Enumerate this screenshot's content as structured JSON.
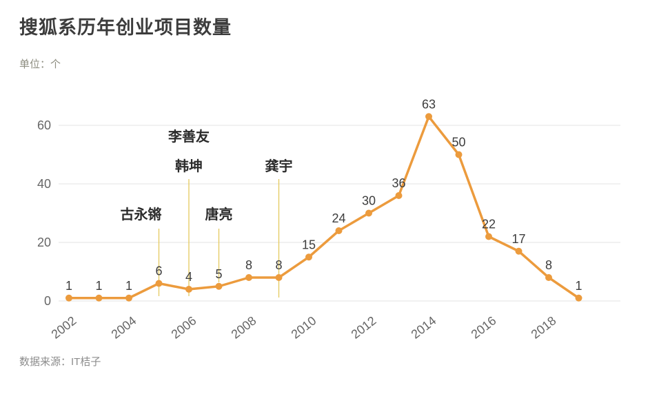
{
  "title": "搜狐系历年创业项目数量",
  "unit_label": "单位：个",
  "source_label": "数据来源：IT桔子",
  "colors": {
    "line": "#EC9B3D",
    "marker": "#EC9B3D",
    "annotation_line": "#E4C95E",
    "annotation_text": "#2B2B2B",
    "grid": "#E3E3E3",
    "axis_text": "#666666",
    "value_label": "#3D3D3D"
  },
  "chart_data": {
    "type": "line",
    "x": [
      2002,
      2003,
      2004,
      2005,
      2006,
      2007,
      2008,
      2009,
      2010,
      2011,
      2012,
      2013,
      2014,
      2015,
      2016,
      2017,
      2018,
      2019
    ],
    "values": [
      1,
      1,
      1,
      6,
      4,
      5,
      8,
      8,
      15,
      24,
      30,
      36,
      63,
      50,
      22,
      17,
      8,
      1
    ],
    "title": "搜狐系历年创业项目数量",
    "xlabel": "",
    "ylabel": "单位：个",
    "ylim": [
      0,
      65
    ],
    "yticks": [
      0,
      20,
      40,
      60
    ],
    "xticks": [
      2002,
      2004,
      2006,
      2008,
      2010,
      2012,
      2014,
      2016,
      2018
    ],
    "grid": true,
    "legend": "none",
    "annotations": [
      {
        "year": 2005,
        "labels": [
          "古永锵"
        ],
        "anchor": "end",
        "label_bottom_y": 318,
        "line_top": 332,
        "line_bottom": 430
      },
      {
        "year": 2006,
        "labels": [
          "李善友",
          "韩坤"
        ],
        "anchor": "middle",
        "label_bottom_y": 248,
        "line_top": 260,
        "line_bottom": 430
      },
      {
        "year": 2007,
        "labels": [
          "唐亮"
        ],
        "anchor": "middle",
        "label_bottom_y": 318,
        "line_top": 332,
        "line_bottom": 410
      },
      {
        "year": 2009,
        "labels": [
          "龚宇"
        ],
        "anchor": "middle",
        "label_bottom_y": 248,
        "line_top": 260,
        "line_bottom": 432
      }
    ]
  }
}
